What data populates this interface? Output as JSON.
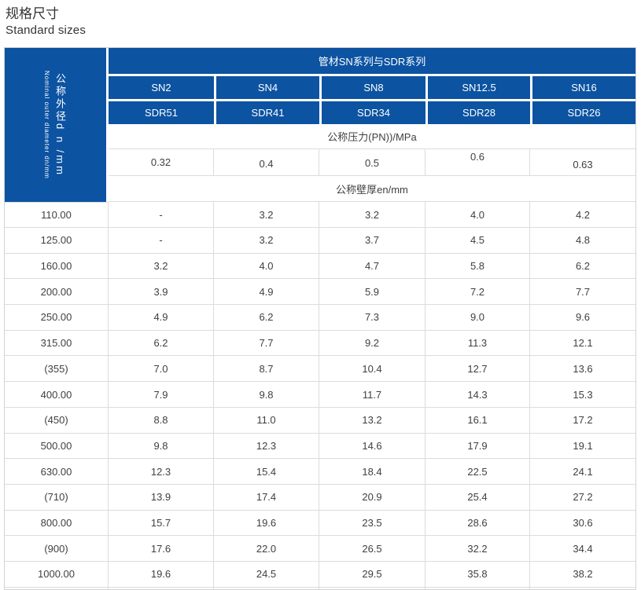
{
  "page": {
    "title_cn": "规格尺寸",
    "title_en": "Standard sizes"
  },
  "table": {
    "corner": {
      "cn": "公称外径d n /mm",
      "en": "Nominal outer diameter dn/mm"
    },
    "series_title": "管材SN系列与SDR系列",
    "sn_labels": [
      "SN2",
      "SN4",
      "SN8",
      "SN12.5",
      "SN16"
    ],
    "sdr_labels": [
      "SDR51",
      "SDR41",
      "SDR34",
      "SDR28",
      "SDR26"
    ],
    "pressure_label": "公称压力(PN))/MPa",
    "pressure_values": [
      "0.32",
      "0.4",
      "0.5",
      "0.6",
      "0.63"
    ],
    "thickness_label": "公称壁厚en/mm",
    "rows": [
      {
        "dn": "110.00",
        "values": [
          "-",
          "3.2",
          "3.2",
          "4.0",
          "4.2"
        ]
      },
      {
        "dn": "125.00",
        "values": [
          "-",
          "3.2",
          "3.7",
          "4.5",
          "4.8"
        ]
      },
      {
        "dn": "160.00",
        "values": [
          "3.2",
          "4.0",
          "4.7",
          "5.8",
          "6.2"
        ]
      },
      {
        "dn": "200.00",
        "values": [
          "3.9",
          "4.9",
          "5.9",
          "7.2",
          "7.7"
        ]
      },
      {
        "dn": "250.00",
        "values": [
          "4.9",
          "6.2",
          "7.3",
          "9.0",
          "9.6"
        ]
      },
      {
        "dn": "315.00",
        "values": [
          "6.2",
          "7.7",
          "9.2",
          "11.3",
          "12.1"
        ]
      },
      {
        "dn": "(355)",
        "values": [
          "7.0",
          "8.7",
          "10.4",
          "12.7",
          "13.6"
        ]
      },
      {
        "dn": "400.00",
        "values": [
          "7.9",
          "9.8",
          "11.7",
          "14.3",
          "15.3"
        ]
      },
      {
        "dn": "(450)",
        "values": [
          "8.8",
          "11.0",
          "13.2",
          "16.1",
          "17.2"
        ]
      },
      {
        "dn": "500.00",
        "values": [
          "9.8",
          "12.3",
          "14.6",
          "17.9",
          "19.1"
        ]
      },
      {
        "dn": "630.00",
        "values": [
          "12.3",
          "15.4",
          "18.4",
          "22.5",
          "24.1"
        ]
      },
      {
        "dn": "(710)",
        "values": [
          "13.9",
          "17.4",
          "20.9",
          "25.4",
          "27.2"
        ]
      },
      {
        "dn": "800.00",
        "values": [
          "15.7",
          "19.6",
          "23.5",
          "28.6",
          "30.6"
        ]
      },
      {
        "dn": "(900)",
        "values": [
          "17.6",
          "22.0",
          "26.5",
          "32.2",
          "34.4"
        ]
      },
      {
        "dn": "1000.00",
        "values": [
          "19.6",
          "24.5",
          "29.5",
          "35.8",
          "38.2"
        ]
      }
    ],
    "colors": {
      "header_blue": "#0c53a2",
      "border_gray": "#dcdcdc",
      "text_dark": "#3f3f3f"
    }
  }
}
